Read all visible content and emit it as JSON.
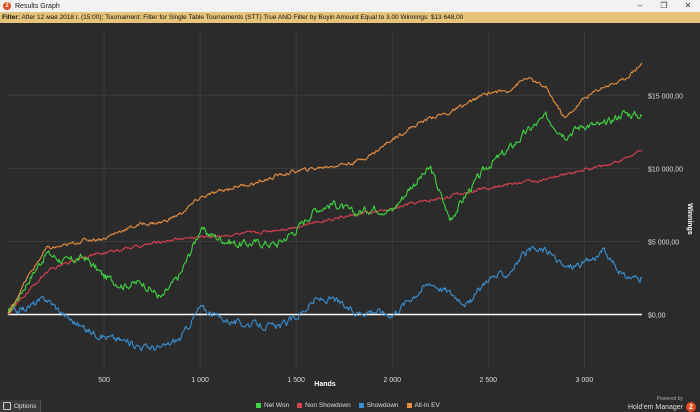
{
  "window": {
    "title": "Results Graph",
    "app_icon_glyph": "2",
    "minimize_glyph": "–",
    "restore_glyph": "❐",
    "close_glyph": "✕"
  },
  "filter": {
    "label": "Filter:",
    "text": "After 12 мая 2018 г. (15:00); Tournament: Filter for Single Table Tournaments (STT) True AND Filter by Buyin Amount Equal to 3.00",
    "winnings_label": "Winnings:",
    "winnings_value": "$13 648,00"
  },
  "options": {
    "label": "Options"
  },
  "brand": {
    "powered_by": "Powered by",
    "name": "Hold'em Manager",
    "badge": "2"
  },
  "colors": {
    "net_won": "#3fd43f",
    "non_showdown": "#d9424f",
    "showdown": "#3a8fd1",
    "all_in_ev": "#e88f3f",
    "background": "#2b2b2b"
  },
  "chart_data": {
    "type": "line",
    "xlabel": "Hands",
    "ylabel": "Winnings",
    "xlim": [
      0,
      3300
    ],
    "ylim": [
      -3800,
      19400
    ],
    "x_ticks": [
      500,
      1000,
      1500,
      2000,
      2500,
      3000
    ],
    "x_tick_labels": [
      "500",
      "1 000",
      "1 500",
      "2 000",
      "2 500",
      "3 000"
    ],
    "y_ticks": [
      0,
      5000,
      10000,
      15000
    ],
    "y_tick_labels": [
      "$0,00",
      "$5 000,00",
      "$10 000,00",
      "$15 000,00"
    ],
    "grid": true,
    "legend_position": "bottom",
    "series": [
      {
        "name": "Net Won",
        "x": [
          0,
          100,
          200,
          300,
          400,
          500,
          600,
          700,
          800,
          900,
          1000,
          1100,
          1200,
          1300,
          1400,
          1500,
          1600,
          1700,
          1800,
          1900,
          2000,
          2100,
          2200,
          2300,
          2400,
          2500,
          2600,
          2700,
          2800,
          2900,
          3000,
          3100,
          3200,
          3300
        ],
        "y": [
          0,
          2200,
          4200,
          3600,
          3900,
          2600,
          2000,
          2200,
          1100,
          2800,
          5800,
          5200,
          4800,
          4900,
          4800,
          5800,
          7200,
          7600,
          6900,
          7300,
          7100,
          8800,
          10000,
          6500,
          8500,
          10200,
          11200,
          12500,
          13500,
          12300,
          13000,
          12900,
          13800,
          13600
        ]
      },
      {
        "name": "Non Showdown",
        "x": [
          0,
          100,
          200,
          300,
          400,
          500,
          600,
          700,
          800,
          900,
          1000,
          1100,
          1200,
          1300,
          1400,
          1500,
          1600,
          1700,
          1800,
          1900,
          2000,
          2100,
          2200,
          2300,
          2400,
          2500,
          2600,
          2700,
          2800,
          2900,
          3000,
          3100,
          3200,
          3300
        ],
        "y": [
          0,
          1500,
          2900,
          3500,
          4000,
          4200,
          4500,
          4700,
          5000,
          5200,
          5300,
          5400,
          5500,
          5600,
          5800,
          6000,
          6300,
          6600,
          6800,
          7000,
          7200,
          7600,
          7800,
          8100,
          8400,
          8700,
          8900,
          9100,
          9200,
          9600,
          9900,
          10200,
          10600,
          11200
        ]
      },
      {
        "name": "Showdown",
        "x": [
          0,
          100,
          200,
          300,
          400,
          500,
          600,
          700,
          800,
          900,
          1000,
          1100,
          1200,
          1300,
          1400,
          1500,
          1600,
          1700,
          1800,
          1900,
          2000,
          2100,
          2200,
          2300,
          2400,
          2500,
          2600,
          2700,
          2800,
          2900,
          3000,
          3100,
          3200,
          3300
        ],
        "y": [
          0,
          500,
          1100,
          -100,
          -1000,
          -1500,
          -1800,
          -2200,
          -2300,
          -1600,
          500,
          -200,
          -600,
          -700,
          -900,
          -200,
          1000,
          1000,
          100,
          300,
          0,
          1200,
          2200,
          1500,
          700,
          2500,
          2800,
          4300,
          4400,
          3200,
          3500,
          4300,
          2600,
          2500
        ]
      },
      {
        "name": "All-In EV",
        "x": [
          0,
          100,
          200,
          300,
          400,
          500,
          600,
          700,
          800,
          900,
          1000,
          1100,
          1200,
          1300,
          1400,
          1500,
          1600,
          1700,
          1800,
          1900,
          2000,
          2100,
          2200,
          2300,
          2400,
          2500,
          2600,
          2700,
          2800,
          2900,
          3000,
          3100,
          3200,
          3300
        ],
        "y": [
          0,
          2500,
          4500,
          4700,
          5100,
          5200,
          5800,
          6200,
          6300,
          6900,
          8000,
          8400,
          8800,
          9000,
          9500,
          9800,
          10000,
          10200,
          10400,
          11000,
          12000,
          12800,
          13500,
          13800,
          14500,
          15200,
          15300,
          16200,
          15500,
          13400,
          14800,
          15600,
          16000,
          17200
        ]
      }
    ]
  }
}
